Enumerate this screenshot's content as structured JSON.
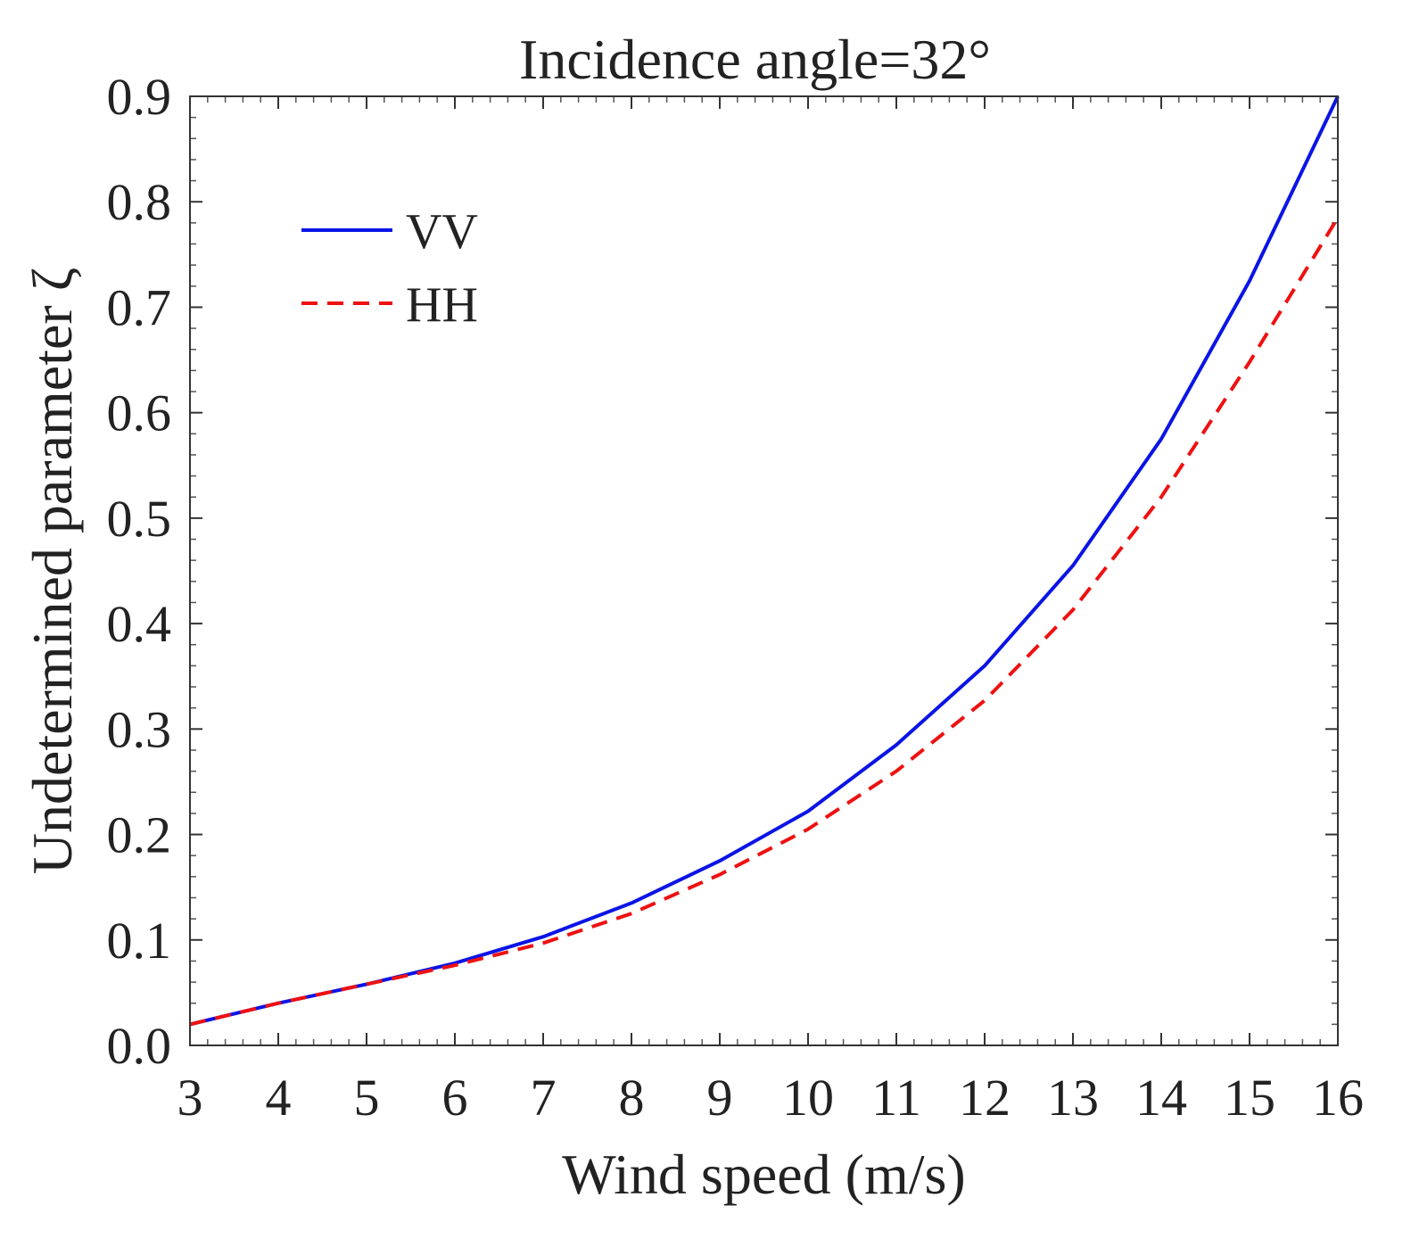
{
  "chart_data": {
    "type": "line",
    "title": "Incidence angle=32°",
    "xlabel": "Wind speed (m/s)",
    "ylabel": "Undetermined parameter ζ",
    "xlim": [
      3,
      16
    ],
    "ylim": [
      0.0,
      0.9
    ],
    "x_ticks": [
      3,
      4,
      5,
      6,
      7,
      8,
      9,
      10,
      11,
      12,
      13,
      14,
      15,
      16
    ],
    "y_ticks": [
      "0.0",
      "0.1",
      "0.2",
      "0.3",
      "0.4",
      "0.5",
      "0.6",
      "0.7",
      "0.8",
      "0.9"
    ],
    "x": [
      3,
      4,
      5,
      6,
      7,
      8,
      9,
      10,
      11,
      12,
      13,
      14,
      15,
      16
    ],
    "series": [
      {
        "name": "VV",
        "color": "#0a14e6",
        "dash": "solid",
        "values": [
          0.02,
          0.04,
          0.058,
          0.078,
          0.103,
          0.135,
          0.175,
          0.222,
          0.285,
          0.36,
          0.455,
          0.575,
          0.725,
          0.9
        ]
      },
      {
        "name": "HH",
        "color": "#ee1111",
        "dash": "dashed",
        "values": [
          0.02,
          0.04,
          0.058,
          0.076,
          0.097,
          0.125,
          0.162,
          0.205,
          0.26,
          0.327,
          0.413,
          0.52,
          0.648,
          0.785
        ]
      }
    ],
    "legend_position": "top-left",
    "grid": false
  }
}
